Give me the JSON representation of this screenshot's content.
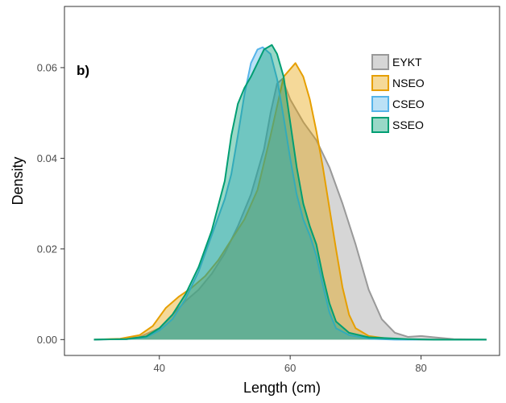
{
  "chart_data": {
    "type": "area",
    "panel_label": "b)",
    "title": "",
    "xlabel": "Length (cm)",
    "ylabel": "Density",
    "xlim": [
      25.5,
      92
    ],
    "ylim": [
      -0.0035,
      0.0735
    ],
    "x_ticks": [
      40,
      60,
      80
    ],
    "y_ticks": [
      0.0,
      0.02,
      0.04,
      0.06
    ],
    "y_tick_labels": [
      "0.00",
      "0.02",
      "0.04",
      "0.06"
    ],
    "grid": false,
    "legend_position": "top-right",
    "series": [
      {
        "name": "EYKT",
        "line_color": "#999999",
        "fill_color": "#999999",
        "points": [
          [
            30,
            0
          ],
          [
            34,
            0.0001
          ],
          [
            37,
            0.0006
          ],
          [
            40,
            0.0025
          ],
          [
            42,
            0.0055
          ],
          [
            44,
            0.0085
          ],
          [
            46,
            0.011
          ],
          [
            48,
            0.0145
          ],
          [
            50,
            0.019
          ],
          [
            52,
            0.025
          ],
          [
            54,
            0.032
          ],
          [
            56,
            0.042
          ],
          [
            57,
            0.05
          ],
          [
            58,
            0.0565
          ],
          [
            58.8,
            0.0575
          ],
          [
            60,
            0.053
          ],
          [
            62,
            0.048
          ],
          [
            64,
            0.044
          ],
          [
            66,
            0.038
          ],
          [
            68,
            0.03
          ],
          [
            70,
            0.021
          ],
          [
            72,
            0.011
          ],
          [
            74,
            0.0045
          ],
          [
            76,
            0.0015
          ],
          [
            78,
            0.0006
          ],
          [
            80,
            0.0008
          ],
          [
            82,
            0.0005
          ],
          [
            85,
            0.0001
          ],
          [
            90,
            0
          ]
        ]
      },
      {
        "name": "NSEO",
        "line_color": "#E69F00",
        "fill_color": "#E69F00",
        "points": [
          [
            30,
            0
          ],
          [
            34,
            0.0002
          ],
          [
            37,
            0.001
          ],
          [
            39,
            0.003
          ],
          [
            41,
            0.007
          ],
          [
            43,
            0.0095
          ],
          [
            45,
            0.0115
          ],
          [
            47,
            0.014
          ],
          [
            49,
            0.0175
          ],
          [
            51,
            0.022
          ],
          [
            53,
            0.0265
          ],
          [
            55,
            0.033
          ],
          [
            57,
            0.045
          ],
          [
            59,
            0.058
          ],
          [
            60.8,
            0.061
          ],
          [
            62,
            0.058
          ],
          [
            63,
            0.053
          ],
          [
            64,
            0.046
          ],
          [
            65,
            0.038
          ],
          [
            66,
            0.029
          ],
          [
            67,
            0.02
          ],
          [
            68,
            0.0115
          ],
          [
            69,
            0.0055
          ],
          [
            70,
            0.0025
          ],
          [
            72,
            0.0008
          ],
          [
            75,
            0.0002
          ],
          [
            80,
            0
          ],
          [
            90,
            0
          ]
        ]
      },
      {
        "name": "CSEO",
        "line_color": "#56B4E9",
        "fill_color": "#56B4E9",
        "points": [
          [
            30,
            0
          ],
          [
            35,
            0.0001
          ],
          [
            38,
            0.0005
          ],
          [
            40,
            0.002
          ],
          [
            42,
            0.0045
          ],
          [
            44,
            0.009
          ],
          [
            46,
            0.015
          ],
          [
            48,
            0.023
          ],
          [
            50,
            0.031
          ],
          [
            51,
            0.0365
          ],
          [
            52,
            0.045
          ],
          [
            53,
            0.054
          ],
          [
            54,
            0.061
          ],
          [
            55,
            0.064
          ],
          [
            55.8,
            0.0645
          ],
          [
            57,
            0.063
          ],
          [
            58,
            0.0575
          ],
          [
            59,
            0.049
          ],
          [
            60,
            0.04
          ],
          [
            61,
            0.032
          ],
          [
            62,
            0.0265
          ],
          [
            63,
            0.023
          ],
          [
            64,
            0.0185
          ],
          [
            65,
            0.012
          ],
          [
            66,
            0.006
          ],
          [
            67,
            0.0025
          ],
          [
            69,
            0.001
          ],
          [
            72,
            0.0002
          ],
          [
            76,
            0
          ],
          [
            90,
            0
          ]
        ]
      },
      {
        "name": "SSEO",
        "line_color": "#009E73",
        "fill_color": "#009E73",
        "points": [
          [
            30,
            0
          ],
          [
            35,
            0.0001
          ],
          [
            38,
            0.0007
          ],
          [
            40,
            0.0025
          ],
          [
            42,
            0.0055
          ],
          [
            44,
            0.01
          ],
          [
            46,
            0.016
          ],
          [
            48,
            0.024
          ],
          [
            50,
            0.035
          ],
          [
            51,
            0.045
          ],
          [
            52,
            0.052
          ],
          [
            53,
            0.0555
          ],
          [
            54,
            0.058
          ],
          [
            55,
            0.061
          ],
          [
            56,
            0.064
          ],
          [
            57.2,
            0.065
          ],
          [
            58,
            0.063
          ],
          [
            59,
            0.058
          ],
          [
            60,
            0.048
          ],
          [
            61,
            0.038
          ],
          [
            62,
            0.03
          ],
          [
            63,
            0.025
          ],
          [
            64,
            0.021
          ],
          [
            65,
            0.014
          ],
          [
            66,
            0.008
          ],
          [
            67,
            0.004
          ],
          [
            69,
            0.0015
          ],
          [
            72,
            0.0005
          ],
          [
            75,
            0.0003
          ],
          [
            78,
            0.0001
          ],
          [
            82,
            0
          ],
          [
            90,
            0
          ]
        ]
      }
    ]
  }
}
